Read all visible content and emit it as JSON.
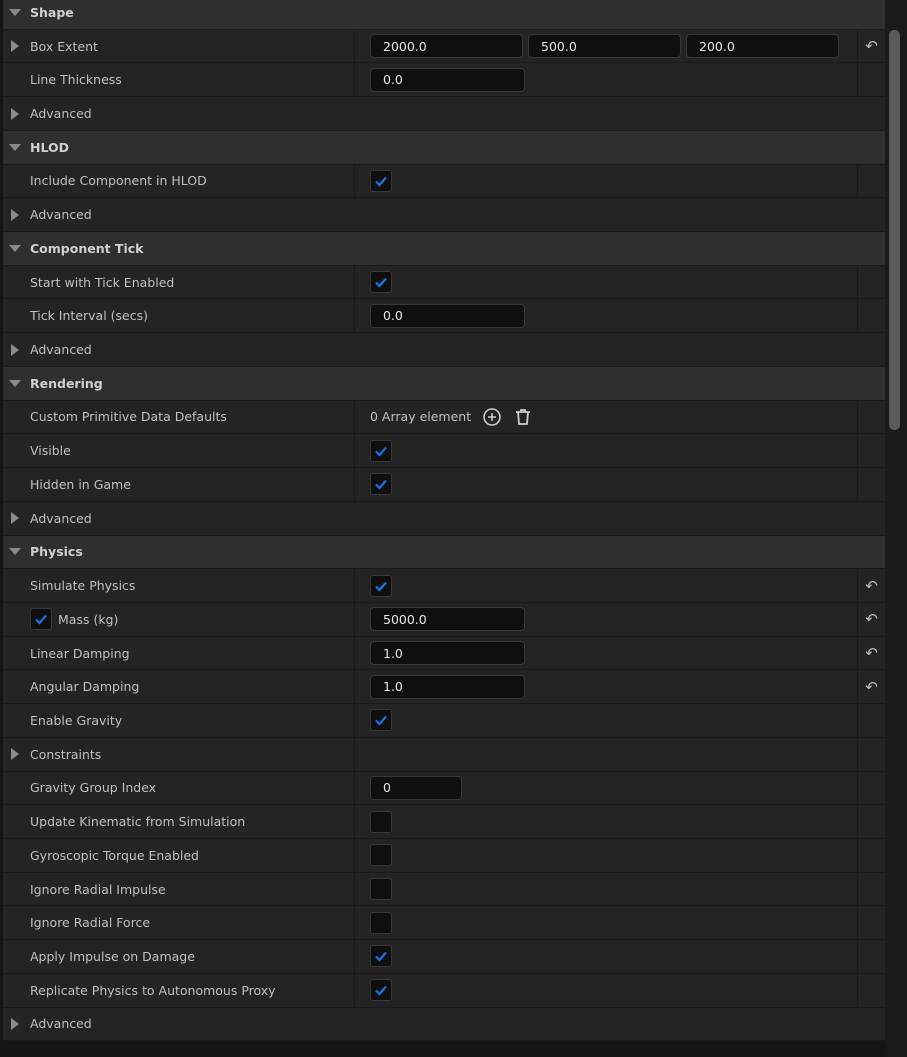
{
  "accent_color": "#1a73e8",
  "rows": [
    {
      "type": "header",
      "label": "Shape"
    },
    {
      "type": "prop",
      "label": "Box Extent",
      "expandable": true,
      "value": {
        "kind": "vector",
        "values": [
          "2000.0",
          "500.0",
          "200.0"
        ]
      },
      "reset": true
    },
    {
      "type": "prop",
      "label": "Line Thickness",
      "value": {
        "kind": "number",
        "value": "0.0"
      }
    },
    {
      "type": "adv",
      "label": "Advanced"
    },
    {
      "type": "header",
      "label": "HLOD"
    },
    {
      "type": "prop",
      "label": "Include Component in HLOD",
      "value": {
        "kind": "checkbox",
        "checked": true
      }
    },
    {
      "type": "adv",
      "label": "Advanced"
    },
    {
      "type": "header",
      "label": "Component Tick"
    },
    {
      "type": "prop",
      "label": "Start with Tick Enabled",
      "value": {
        "kind": "checkbox",
        "checked": true
      }
    },
    {
      "type": "prop",
      "label": "Tick Interval (secs)",
      "value": {
        "kind": "number",
        "value": "0.0"
      }
    },
    {
      "type": "adv",
      "label": "Advanced"
    },
    {
      "type": "header",
      "label": "Rendering"
    },
    {
      "type": "prop",
      "label": "Custom Primitive Data Defaults",
      "value": {
        "kind": "array",
        "text": "0 Array element"
      }
    },
    {
      "type": "prop",
      "label": "Visible",
      "value": {
        "kind": "checkbox",
        "checked": true
      }
    },
    {
      "type": "prop",
      "label": "Hidden in Game",
      "value": {
        "kind": "checkbox",
        "checked": true
      }
    },
    {
      "type": "adv",
      "label": "Advanced"
    },
    {
      "type": "header",
      "label": "Physics"
    },
    {
      "type": "prop",
      "label": "Simulate Physics",
      "value": {
        "kind": "checkbox",
        "checked": true
      },
      "reset": true
    },
    {
      "type": "prop",
      "label": "Mass (kg)",
      "override": true,
      "value": {
        "kind": "number",
        "value": "5000.0"
      },
      "reset": true
    },
    {
      "type": "prop",
      "label": "Linear Damping",
      "value": {
        "kind": "number",
        "value": "1.0"
      },
      "reset": true
    },
    {
      "type": "prop",
      "label": "Angular Damping",
      "value": {
        "kind": "number",
        "value": "1.0"
      },
      "reset": true
    },
    {
      "type": "prop",
      "label": "Enable Gravity",
      "value": {
        "kind": "checkbox",
        "checked": true
      }
    },
    {
      "type": "prop",
      "label": "Constraints",
      "expandable": true,
      "value": {
        "kind": "none"
      }
    },
    {
      "type": "prop",
      "label": "Gravity Group Index",
      "value": {
        "kind": "int",
        "value": "0"
      }
    },
    {
      "type": "prop",
      "label": "Update Kinematic from Simulation",
      "value": {
        "kind": "checkbox",
        "checked": false
      }
    },
    {
      "type": "prop",
      "label": "Gyroscopic Torque Enabled",
      "value": {
        "kind": "checkbox",
        "checked": false
      }
    },
    {
      "type": "prop",
      "label": "Ignore Radial Impulse",
      "value": {
        "kind": "checkbox",
        "checked": false
      }
    },
    {
      "type": "prop",
      "label": "Ignore Radial Force",
      "value": {
        "kind": "checkbox",
        "checked": false
      }
    },
    {
      "type": "prop",
      "label": "Apply Impulse on Damage",
      "value": {
        "kind": "checkbox",
        "checked": true
      }
    },
    {
      "type": "prop",
      "label": "Replicate Physics to Autonomous Proxy",
      "value": {
        "kind": "checkbox",
        "checked": true
      }
    },
    {
      "type": "adv",
      "label": "Advanced"
    }
  ]
}
